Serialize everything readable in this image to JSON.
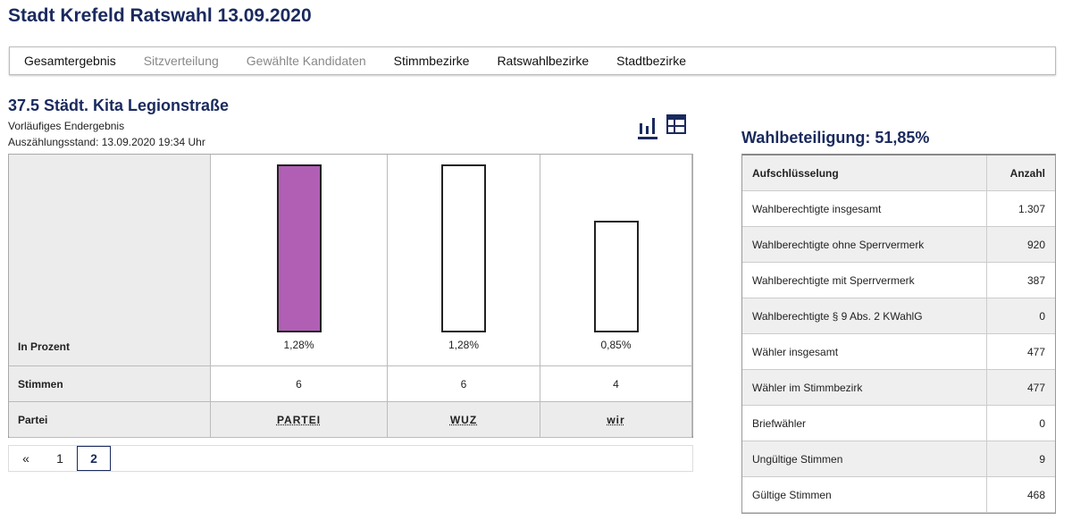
{
  "title": "Stadt Krefeld Ratswahl 13.09.2020",
  "nav": [
    {
      "label": "Gesamtergebnis",
      "disabled": false
    },
    {
      "label": "Sitzverteilung",
      "disabled": true
    },
    {
      "label": "Gewählte Kandidaten",
      "disabled": true
    },
    {
      "label": "Stimmbezirke",
      "disabled": false
    },
    {
      "label": "Ratswahlbezirke",
      "disabled": false
    },
    {
      "label": "Stadtbezirke",
      "disabled": false
    }
  ],
  "district": {
    "title": "37.5 Städt. Kita Legionstraße",
    "status": "Vorläufiges Endergebnis",
    "count_state": "Auszählungsstand: 13.09.2020 19:34 Uhr"
  },
  "chart_data": {
    "type": "bar",
    "row_labels": {
      "percent": "In Prozent",
      "votes": "Stimmen",
      "party": "Partei"
    },
    "categories": [
      "PARTEI",
      "WUZ",
      "wir"
    ],
    "values": [
      1.28,
      1.28,
      0.85
    ],
    "value_labels": [
      "1,28%",
      "1,28%",
      "0,85%"
    ],
    "votes": [
      "6",
      "6",
      "4"
    ],
    "colors": [
      "#b05fb5",
      "#ffffff",
      "#ffffff"
    ],
    "ylim": [
      0,
      1.28
    ]
  },
  "pagination": {
    "prev": "«",
    "pages": [
      "1",
      "2"
    ],
    "current": "2"
  },
  "turnout": {
    "title": "Wahlbeteiligung: 51,85%",
    "header": [
      "Aufschlüsselung",
      "Anzahl"
    ],
    "rows": [
      [
        "Wahlberechtigte insgesamt",
        "1.307"
      ],
      [
        "Wahlberechtigte ohne Sperrvermerk",
        "920"
      ],
      [
        "Wahlberechtigte mit Sperrvermerk",
        "387"
      ],
      [
        "Wahlberechtigte § 9 Abs. 2 KWahlG",
        "0"
      ],
      [
        "Wähler insgesamt",
        "477"
      ],
      [
        "Wähler im Stimmbezirk",
        "477"
      ],
      [
        "Briefwähler",
        "0"
      ],
      [
        "Ungültige Stimmen",
        "9"
      ],
      [
        "Gültige Stimmen",
        "468"
      ]
    ]
  }
}
